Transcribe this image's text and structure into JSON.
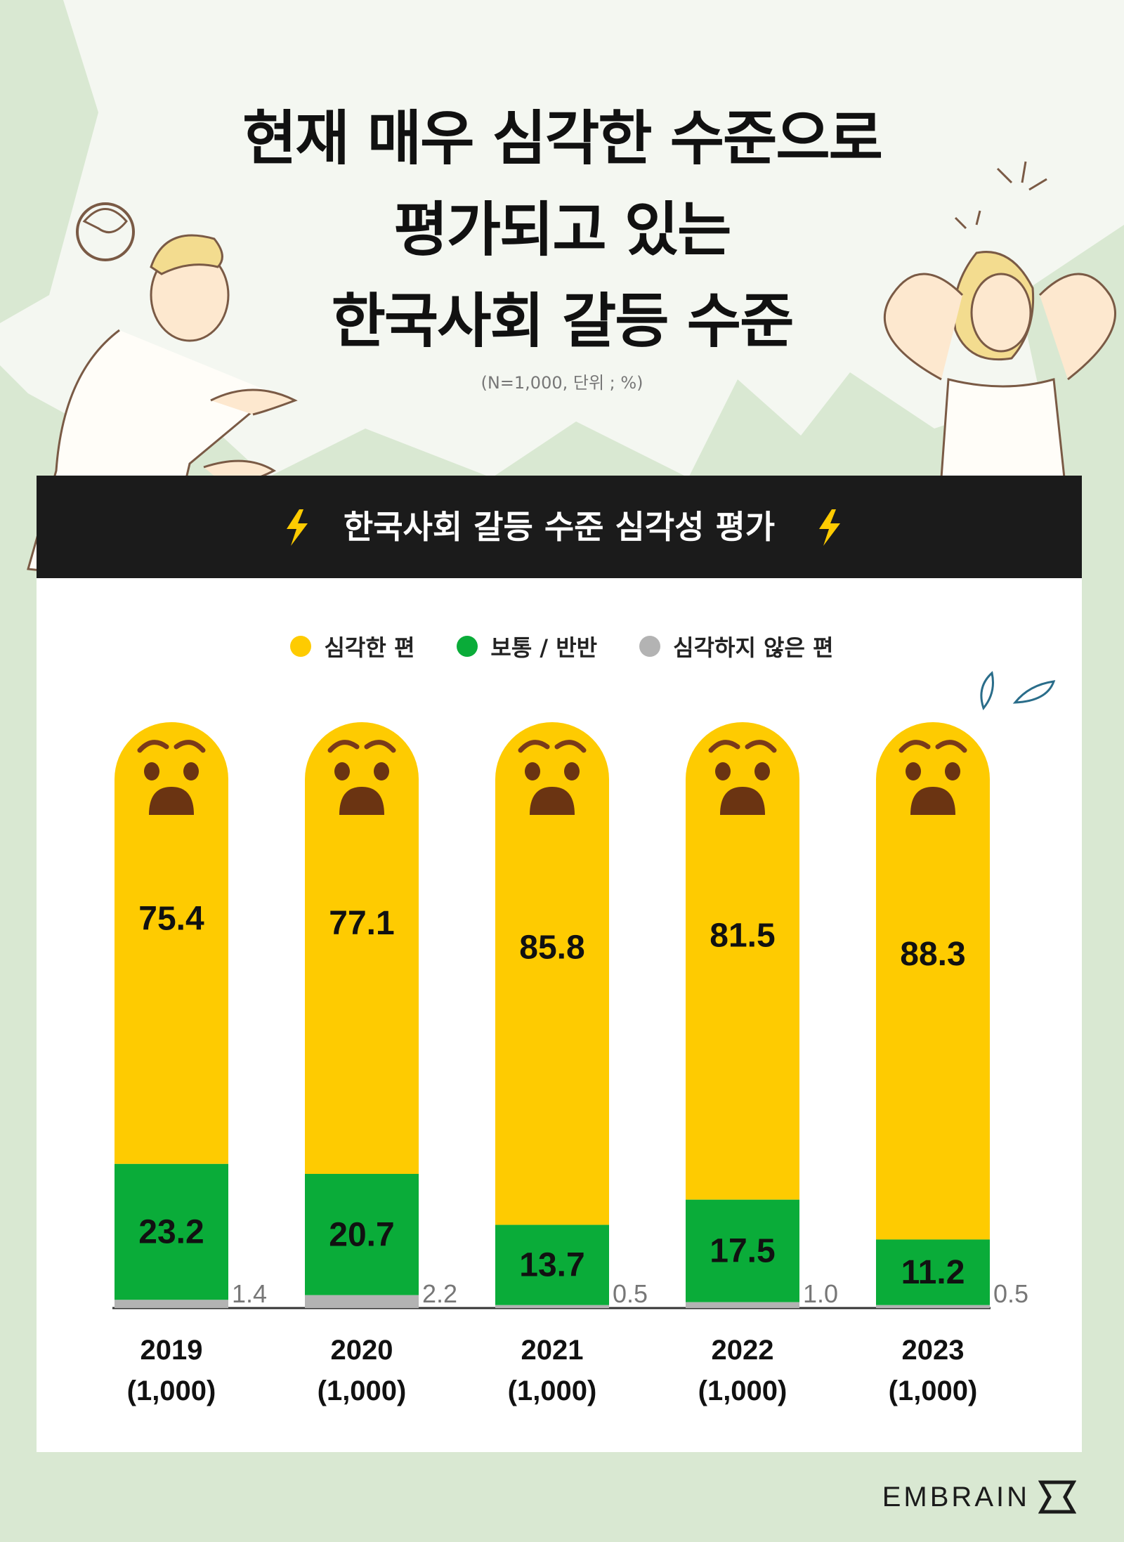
{
  "title_lines": [
    "현재 매우 심각한 수준으로",
    "평가되고 있는",
    "한국사회 갈등 수준"
  ],
  "subtitle": "(N=1,000, 단위 ; %)",
  "header": {
    "label": "한국사회 갈등 수준 심각성 평가"
  },
  "brand": "EMBRAIN",
  "colors": {
    "serious": "#fecb01",
    "neutral": "#0aac39",
    "not_serious": "#b3b3b3",
    "header_bg": "#1b1b1b",
    "page_bg": "#d9e8d2"
  },
  "chart_data": {
    "type": "bar",
    "stacked": true,
    "categories": [
      "2019\n(1,000)",
      "2020\n(1,000)",
      "2021\n(1,000)",
      "2022\n(1,000)",
      "2023\n(1,000)"
    ],
    "category_years": [
      "2019",
      "2020",
      "2021",
      "2022",
      "2023"
    ],
    "category_n": [
      "(1,000)",
      "(1,000)",
      "(1,000)",
      "(1,000)",
      "(1,000)"
    ],
    "series": [
      {
        "name": "심각한 편",
        "values": [
          75.4,
          77.1,
          85.8,
          81.5,
          88.3
        ]
      },
      {
        "name": "보통 / 반반",
        "values": [
          23.2,
          20.7,
          13.7,
          17.5,
          11.2
        ]
      },
      {
        "name": "심각하지 않은 편",
        "values": [
          1.4,
          2.2,
          0.5,
          1.0,
          0.5
        ]
      }
    ],
    "labels": {
      "serious": [
        "75.4",
        "77.1",
        "85.8",
        "81.5",
        "88.3"
      ],
      "neutral": [
        "23.2",
        "20.7",
        "13.7",
        "17.5",
        "11.2"
      ],
      "not_serious": [
        "1.4",
        "2.2",
        "0.5",
        "1.0",
        "0.5"
      ]
    },
    "ylim": [
      0,
      100
    ],
    "legend_position": "top-center"
  }
}
